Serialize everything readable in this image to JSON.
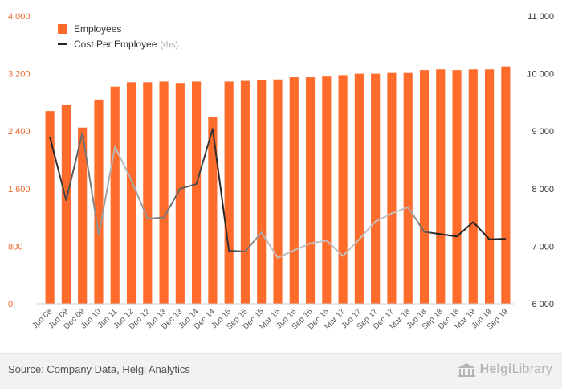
{
  "chart_data": {
    "type": "bar",
    "categories": [
      "Jun 08",
      "Jun 09",
      "Dec 09",
      "Jun 10",
      "Jun 11",
      "Jun 12",
      "Dec 12",
      "Jun 13",
      "Dec 13",
      "Jun 14",
      "Dec 14",
      "Jun 15",
      "Sep 15",
      "Dec 15",
      "Mar 16",
      "Jun 16",
      "Sep 16",
      "Dec 16",
      "Mar 17",
      "Jun 17",
      "Sep 17",
      "Dec 17",
      "Mar 18",
      "Jun 18",
      "Sep 18",
      "Dec 18",
      "Mar 19",
      "Jun 19",
      "Sep 19"
    ],
    "series": [
      {
        "name": "Employees",
        "type": "bar",
        "axis": "left",
        "color": "#ff6b2b",
        "values": [
          2680,
          2760,
          2450,
          2840,
          3020,
          3080,
          3080,
          3090,
          3070,
          3090,
          2600,
          3090,
          3100,
          3110,
          3120,
          3150,
          3150,
          3160,
          3180,
          3200,
          3200,
          3210,
          3210,
          3250,
          3260,
          3250,
          3260,
          3260,
          3300
        ]
      },
      {
        "name": "Cost Per Employee",
        "name_suffix": "(rhs)",
        "type": "line",
        "axis": "right",
        "color": "#222222",
        "fade_color": "#c0c0c0",
        "values": [
          8900,
          7800,
          8970,
          7200,
          8730,
          8150,
          7480,
          7500,
          8000,
          8080,
          9040,
          6920,
          6910,
          7240,
          6800,
          6930,
          7050,
          7100,
          6830,
          7120,
          7430,
          7570,
          7680,
          7250,
          7210,
          7170,
          7420,
          7120,
          7130
        ]
      }
    ],
    "y_left": {
      "min": 0,
      "max": 4000,
      "ticks": [
        "0",
        "800",
        "1 600",
        "2 400",
        "3 200",
        "4 000"
      ]
    },
    "y_right": {
      "min": 6000,
      "max": 11000,
      "ticks": [
        "6 000",
        "7 000",
        "8 000",
        "9 000",
        "10 000",
        "11 000"
      ]
    },
    "legend": {
      "position": "top-left"
    },
    "grid": false
  },
  "footer": {
    "source": "Source: Company Data, Helgi Analytics",
    "brand_part1": "Helgi",
    "brand_part2": "Library"
  },
  "colors": {
    "bar": "#ff6b2b",
    "line": "#222222",
    "left_axis_text": "#e8692c",
    "footer_bg": "#f2f2f2"
  }
}
